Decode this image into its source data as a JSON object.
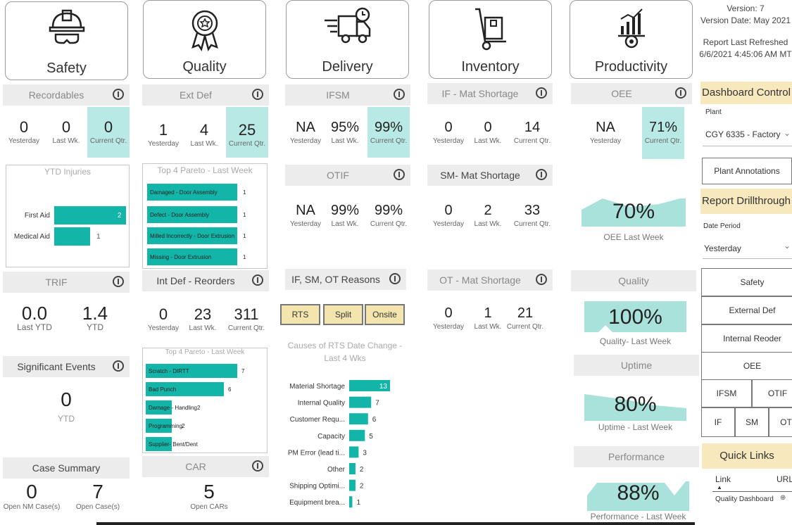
{
  "categories": [
    {
      "label": "Safety",
      "icon": "hard-hat-icon"
    },
    {
      "label": "Quality",
      "icon": "award-badge-icon"
    },
    {
      "label": "Delivery",
      "icon": "delivery-truck-icon"
    },
    {
      "label": "Inventory",
      "icon": "hand-truck-icon"
    },
    {
      "label": "Productivity",
      "icon": "factory-gear-icon"
    }
  ],
  "version": {
    "line1": "Version: 7",
    "line2": "Version Date: May 2021",
    "line3": "Report Last Refreshed",
    "line4": "6/6/2021 4:45:06 AM MT"
  },
  "safety": {
    "recordables": {
      "title": "Recordables",
      "yesterday": "0",
      "last_wk": "0",
      "current_qtr": "0"
    },
    "ytd_injuries": {
      "title": "YTD Injuries",
      "bars": [
        {
          "label": "First Aid",
          "value": 2
        },
        {
          "label": "Medical Aid",
          "value": 1
        }
      ],
      "max": 2
    },
    "trif": {
      "title": "TRIF",
      "last_ytd": "0.0",
      "ytd": "1.4"
    },
    "significant": {
      "title": "Significant Events",
      "value": "0",
      "sub": "YTD"
    },
    "case": {
      "title": "Case Summary",
      "open_nm": "0",
      "open": "7",
      "open_nm_label": "Open NM Case(s)",
      "open_label": "Open Case(s)"
    }
  },
  "quality": {
    "ext_def": {
      "title": "Ext Def",
      "yesterday": "1",
      "last_wk": "4",
      "current_qtr": "25"
    },
    "pareto1": {
      "title": "Top 4 Pareto - Last Week",
      "bars": [
        {
          "label": "Damaged - Door Assembly",
          "value": 1
        },
        {
          "label": "Defect - Door Assembly",
          "value": 1
        },
        {
          "label": "Milled Incorrectly - Door Extrusion",
          "value": 1
        },
        {
          "label": "Missing - Door Extrusion",
          "value": 1
        }
      ],
      "max": 1
    },
    "int_def": {
      "title": "Int Def - Reorders",
      "yesterday": "0",
      "last_wk": "23",
      "current_qtr": "311"
    },
    "pareto2": {
      "title": "Top 4 Pareto - Last Week",
      "bars": [
        {
          "label": "Scratch - DIRTT",
          "value": 7
        },
        {
          "label": "Bad Punch",
          "value": 6
        },
        {
          "label": "Damage - Handling",
          "value": 2
        },
        {
          "label": "Programming",
          "value": 2
        },
        {
          "label": "Supplier- Bent/Dent",
          "value": 2
        }
      ],
      "max": 7
    },
    "car": {
      "title": "CAR",
      "value": "5",
      "sub": "Open CARs"
    }
  },
  "delivery": {
    "ifsm": {
      "title": "IFSM",
      "yesterday": "NA",
      "last_wk": "95%",
      "current_qtr": "99%"
    },
    "otif": {
      "title": "OTIF",
      "yesterday": "NA",
      "last_wk": "99%",
      "current_qtr": "99%"
    },
    "reasons": {
      "title": "IF, SM, OT Reasons",
      "buttons": [
        "RTS",
        "Split",
        "Onsite"
      ]
    },
    "rts_chart": {
      "title": "Causes of RTS Date Change - Last 4 Wks"
    }
  },
  "inventory": {
    "if": {
      "title": "IF - Mat Shortage",
      "yesterday": "0",
      "last_wk": "0",
      "current_qtr": "14"
    },
    "sm": {
      "title": "SM- Mat Shortage",
      "yesterday": "0",
      "last_wk": "2",
      "current_qtr": "33"
    },
    "ot": {
      "title": "OT - Mat Shortage",
      "yesterday": "0",
      "last_wk": "1",
      "current_qtr": "21"
    }
  },
  "productivity": {
    "oee": {
      "title": "OEE",
      "yesterday": "NA",
      "current_qtr": "71%"
    },
    "oee_week": {
      "value": "70%",
      "label": "OEE Last Week"
    },
    "quality": {
      "title": "Quality",
      "value": "100%",
      "label": "Quality- Last Week"
    },
    "uptime": {
      "title": "Uptime",
      "value": "80%",
      "label": "Uptime - Last Week"
    },
    "performance": {
      "title": "Performance",
      "value": "88%",
      "label": "Performance - Last Week"
    }
  },
  "labels": {
    "yesterday": "Yesterday",
    "last_wk": "Last Wk.",
    "current_qtr": "Current Qtr.",
    "last_ytd": "Last YTD",
    "ytd": "YTD"
  },
  "controls": {
    "title": "Dashboard Control",
    "plant_label": "Plant",
    "plant_value": "CGY 6335 - Factory",
    "annotations": "Plant Annotations",
    "drill": "Report Drillthrough",
    "date_label": "Date Period",
    "date_value": "Yesterday",
    "buttons": [
      "Safety",
      "External Def",
      "Internal Reoder",
      "OEE",
      "IFSM",
      "OTIF",
      "IF",
      "SM",
      "OT"
    ],
    "quick_links": "Quick Links",
    "col_link": "Link",
    "col_url": "URL",
    "row_link": "Quality Dashboard"
  },
  "chart_data": {
    "type": "bar",
    "title": "Causes of RTS Date Change - Last 4 Wks",
    "categories": [
      "Material Shortage",
      "Internal Quality",
      "Customer Requ...",
      "Capacity",
      "PM Error (lead ti...",
      "Other",
      "Shipping Optimi...",
      "Equipment brea..."
    ],
    "values": [
      13,
      7,
      6,
      5,
      3,
      2,
      2,
      1
    ],
    "orientation": "horizontal"
  },
  "colors": {
    "teal": "#12b5a8",
    "teal_light": "#b9e9e4",
    "header_gray": "#ececec",
    "gold": "#f7e9bd"
  }
}
